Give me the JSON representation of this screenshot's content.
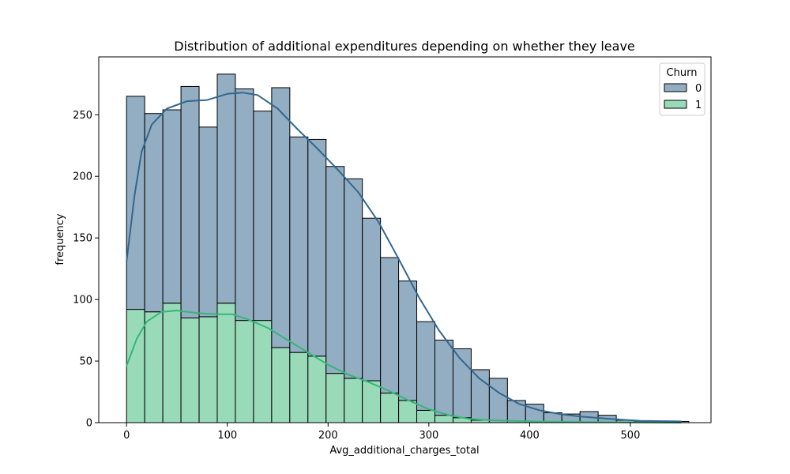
{
  "chart_data": {
    "type": "bar",
    "title": "Distribution of additional expenditures depending on whether they leave",
    "xlabel": "Avg_additional_charges_total",
    "ylabel": "frequency",
    "xlim": [
      -27.6,
      580
    ],
    "ylim": [
      0,
      297
    ],
    "xticks": [
      0,
      100,
      200,
      300,
      400,
      500
    ],
    "yticks": [
      0,
      50,
      100,
      150,
      200,
      250
    ],
    "bin_width": 18.0,
    "bin_start": 0,
    "legend": {
      "title": "Churn",
      "position": "top-right"
    },
    "stacked": true,
    "grid": false,
    "series": [
      {
        "name": "1",
        "color": "#99dab8",
        "line_color": "#35b779",
        "values": [
          92,
          90,
          97,
          85,
          86,
          97,
          83,
          83,
          61,
          57,
          54,
          40,
          36,
          34,
          24,
          18,
          10,
          6,
          4,
          2,
          0,
          0,
          0,
          0,
          0,
          0,
          0,
          0,
          0,
          0,
          0
        ],
        "kde": [
          [
            0,
            46
          ],
          [
            10,
            68
          ],
          [
            20,
            82
          ],
          [
            35,
            90
          ],
          [
            50,
            91
          ],
          [
            70,
            89
          ],
          [
            90,
            88
          ],
          [
            105,
            88
          ],
          [
            120,
            84
          ],
          [
            140,
            77
          ],
          [
            160,
            67
          ],
          [
            180,
            57
          ],
          [
            200,
            47
          ],
          [
            220,
            39
          ],
          [
            240,
            33
          ],
          [
            260,
            26
          ],
          [
            280,
            18
          ],
          [
            300,
            11
          ],
          [
            320,
            6
          ],
          [
            340,
            3
          ],
          [
            360,
            2
          ],
          [
            400,
            1
          ],
          [
            450,
            0.5
          ],
          [
            550,
            0
          ]
        ]
      },
      {
        "name": "0",
        "color": "#93adc2",
        "line_color": "#31688e",
        "values": [
          173,
          161,
          157,
          188,
          154,
          186,
          188,
          170,
          211,
          175,
          176,
          168,
          162,
          132,
          110,
          97,
          72,
          61,
          56,
          41,
          36,
          18,
          15,
          8,
          7,
          9,
          6,
          2,
          1,
          1,
          1
        ],
        "kde": [
          [
            0,
            131
          ],
          [
            8,
            185
          ],
          [
            15,
            220
          ],
          [
            25,
            242
          ],
          [
            40,
            255
          ],
          [
            60,
            261
          ],
          [
            80,
            262
          ],
          [
            100,
            267
          ],
          [
            115,
            268
          ],
          [
            130,
            266
          ],
          [
            150,
            255
          ],
          [
            170,
            238
          ],
          [
            190,
            222
          ],
          [
            210,
            205
          ],
          [
            230,
            187
          ],
          [
            250,
            163
          ],
          [
            270,
            133
          ],
          [
            290,
            102
          ],
          [
            310,
            75
          ],
          [
            330,
            53
          ],
          [
            350,
            36
          ],
          [
            370,
            24
          ],
          [
            390,
            15
          ],
          [
            410,
            10
          ],
          [
            430,
            7
          ],
          [
            450,
            5
          ],
          [
            480,
            3
          ],
          [
            510,
            1.5
          ],
          [
            550,
            1
          ]
        ]
      }
    ]
  }
}
